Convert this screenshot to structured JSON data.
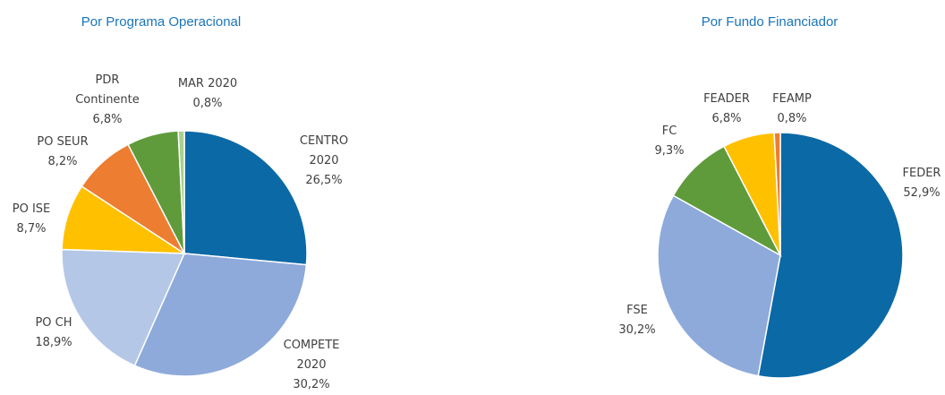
{
  "chart_data": [
    {
      "type": "pie",
      "title": "Por Programa Operacional",
      "categories": [
        "CENTRO 2020",
        "COMPETE 2020",
        "PO CH",
        "PO ISE",
        "PO SEUR",
        "PDR Continente",
        "MAR 2020"
      ],
      "values": [
        26.5,
        30.2,
        18.9,
        8.7,
        8.2,
        6.8,
        0.8
      ],
      "value_labels": [
        "26,5%",
        "30,2%",
        "18,9%",
        "8,7%",
        "8,2%",
        "6,8%",
        "0,8%"
      ],
      "colors": [
        "#0b69a6",
        "#8eaadb",
        "#b4c7e7",
        "#ffc000",
        "#ed7d31",
        "#5f9b3b",
        "#a9d08e"
      ]
    },
    {
      "type": "pie",
      "title": "Por Fundo Financiador",
      "categories": [
        "FEDER",
        "FSE",
        "FC",
        "FEADER",
        "FEAMP"
      ],
      "values": [
        52.9,
        30.2,
        9.3,
        6.8,
        0.8
      ],
      "value_labels": [
        "52,9%",
        "30,2%",
        "9,3%",
        "6,8%",
        "0,8%"
      ],
      "colors": [
        "#0b69a6",
        "#8eaadb",
        "#5f9b3b",
        "#ffc000",
        "#ed7d31"
      ]
    }
  ]
}
